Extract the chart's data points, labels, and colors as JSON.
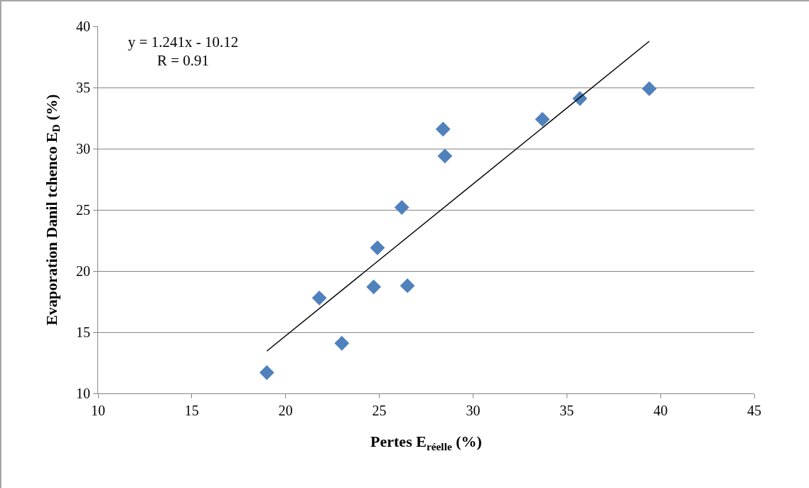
{
  "chart_data": {
    "type": "scatter",
    "xlabel": "Pertes E$_{réelle}$ (%)",
    "ylabel": "Evaporation Danil tchenco E$_{D}$ (%)",
    "annotations": [
      "y = 1.241x - 10.12",
      "R = 0.91"
    ],
    "xlim": [
      10,
      45
    ],
    "xticks": [
      10,
      15,
      20,
      25,
      30,
      35,
      40,
      45
    ],
    "ylim": [
      10,
      40
    ],
    "yticks": [
      10,
      15,
      20,
      25,
      30,
      35,
      40
    ],
    "grid": "y",
    "marker": "diamond",
    "series": [
      {
        "color": "#4f81bd",
        "x": [
          19.0,
          21.8,
          23.0,
          24.7,
          24.9,
          26.2,
          26.5,
          28.4,
          28.5,
          33.7,
          35.7,
          39.4
        ],
        "values": [
          11.7,
          17.8,
          14.1,
          18.7,
          21.9,
          25.2,
          18.8,
          31.6,
          29.4,
          32.4,
          34.1,
          34.9
        ]
      },
      {
        "type": "line",
        "color": "#000000",
        "marker": "none",
        "line_style": "solid",
        "x": [
          19.0,
          39.4
        ],
        "values": [
          13.46,
          38.78
        ]
      }
    ]
  }
}
